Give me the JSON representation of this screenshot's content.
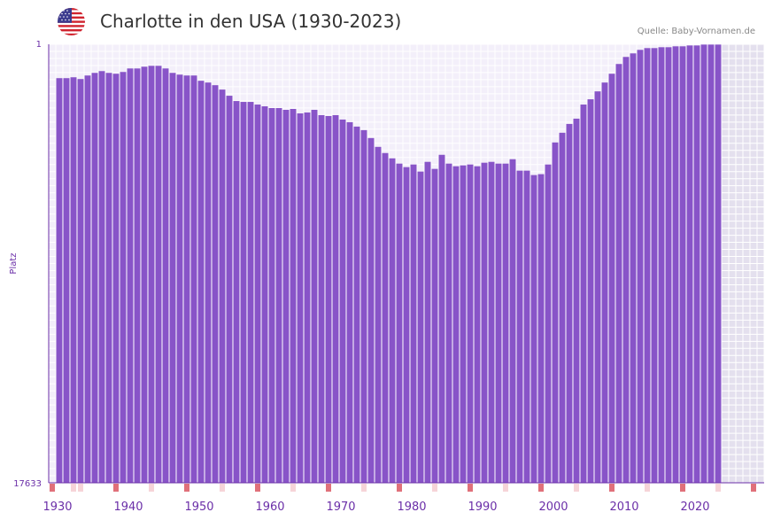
{
  "header": {
    "title": "Charlotte in den USA (1930-2023)",
    "source": "Quelle: Baby-Vornamen.de",
    "flag_icon": "usa-flag-icon"
  },
  "colors": {
    "bar": "#8854c8",
    "axis": "#6b2fa8",
    "plot_bg": "#f3effa",
    "future_bg": "#e4e0ee",
    "grid": "#ffffff",
    "marker_strong": "#e0707a",
    "marker_light": "#f6d4d8"
  },
  "chart_data": {
    "type": "bar",
    "title": "Charlotte in den USA (1930-2023)",
    "xlabel": "",
    "ylabel": "Platz",
    "y_axis_inverted": true,
    "ylim": [
      1,
      17633
    ],
    "y_tick_labels": [
      "1",
      "17633"
    ],
    "x_range": [
      1929,
      2029
    ],
    "x_tick_labels": [
      "1930",
      "1940",
      "1950",
      "1960",
      "1970",
      "1980",
      "1990",
      "2000",
      "2010",
      "2020"
    ],
    "years": [
      1930,
      1931,
      1932,
      1933,
      1934,
      1935,
      1936,
      1937,
      1938,
      1939,
      1940,
      1941,
      1942,
      1943,
      1944,
      1945,
      1946,
      1947,
      1948,
      1949,
      1950,
      1951,
      1952,
      1953,
      1954,
      1955,
      1956,
      1957,
      1958,
      1959,
      1960,
      1961,
      1962,
      1963,
      1964,
      1965,
      1966,
      1967,
      1968,
      1969,
      1970,
      1971,
      1972,
      1973,
      1974,
      1975,
      1976,
      1977,
      1978,
      1979,
      1980,
      1981,
      1982,
      1983,
      1984,
      1985,
      1986,
      1987,
      1988,
      1989,
      1990,
      1991,
      1992,
      1993,
      1994,
      1995,
      1996,
      1997,
      1998,
      1999,
      2000,
      2001,
      2002,
      2003,
      2004,
      2005,
      2006,
      2007,
      2008,
      2009,
      2010,
      2011,
      2012,
      2013,
      2014,
      2015,
      2016,
      2017,
      2018,
      2019,
      2020,
      2021,
      2022,
      2023
    ],
    "values": [
      1362,
      1362,
      1327,
      1398,
      1256,
      1150,
      1079,
      1150,
      1185,
      1114,
      973,
      973,
      902,
      866,
      866,
      973,
      1150,
      1221,
      1256,
      1256,
      1468,
      1539,
      1645,
      1822,
      2070,
      2283,
      2318,
      2318,
      2424,
      2495,
      2566,
      2566,
      2637,
      2601,
      2779,
      2743,
      2637,
      2849,
      2885,
      2849,
      3027,
      3133,
      3310,
      3452,
      3771,
      4126,
      4374,
      4586,
      4799,
      4940,
      4834,
      5117,
      4728,
      5011,
      4445,
      4799,
      4905,
      4870,
      4834,
      4905,
      4763,
      4728,
      4799,
      4799,
      4622,
      5082,
      5082,
      5259,
      5223,
      4834,
      3948,
      3558,
      3204,
      2991,
      2424,
      2212,
      1894,
      1539,
      1185,
      793,
      509,
      367,
      225,
      154,
      154,
      119,
      119,
      83,
      83,
      48,
      48,
      12,
      12,
      12
    ],
    "marker_years": [
      1930,
      1931,
      1932,
      1933,
      1934,
      1935,
      1936,
      1937,
      1938,
      1939,
      1940,
      1941,
      1942,
      1943,
      1944,
      1945,
      1946,
      1947,
      1948,
      1949,
      1950,
      1951,
      1952,
      1953,
      1954,
      1955,
      1956,
      1957,
      1958,
      1959,
      1960,
      1961,
      1962,
      1963,
      1964,
      1965,
      1966,
      1967,
      1968,
      1969,
      1970,
      1971,
      1972,
      1973,
      1974,
      1975,
      1976,
      1977,
      1978,
      1979,
      1980,
      1981,
      1982,
      1983,
      1984,
      1985,
      1986,
      1987,
      1988,
      1989,
      1990,
      1991,
      1992,
      1993,
      1994,
      1995,
      1996,
      1997,
      1998,
      1999,
      2000,
      2001,
      2002,
      2003,
      2004,
      2005,
      2006,
      2007,
      2008,
      2009,
      2010,
      2011,
      2012,
      2013,
      2014,
      2015,
      2016,
      2017,
      2018,
      2019,
      2020,
      2021,
      2022,
      2023,
      2024,
      2025,
      2026,
      2027,
      2028
    ],
    "marker_strong_years": [
      1929,
      1938,
      1948,
      1958,
      1968,
      1978,
      1988,
      1998,
      2008,
      2018,
      2028
    ],
    "marker_light_years": [
      1932,
      1933,
      1943,
      1953,
      1963,
      1973,
      1983,
      1993,
      2003,
      2013,
      2023
    ]
  }
}
